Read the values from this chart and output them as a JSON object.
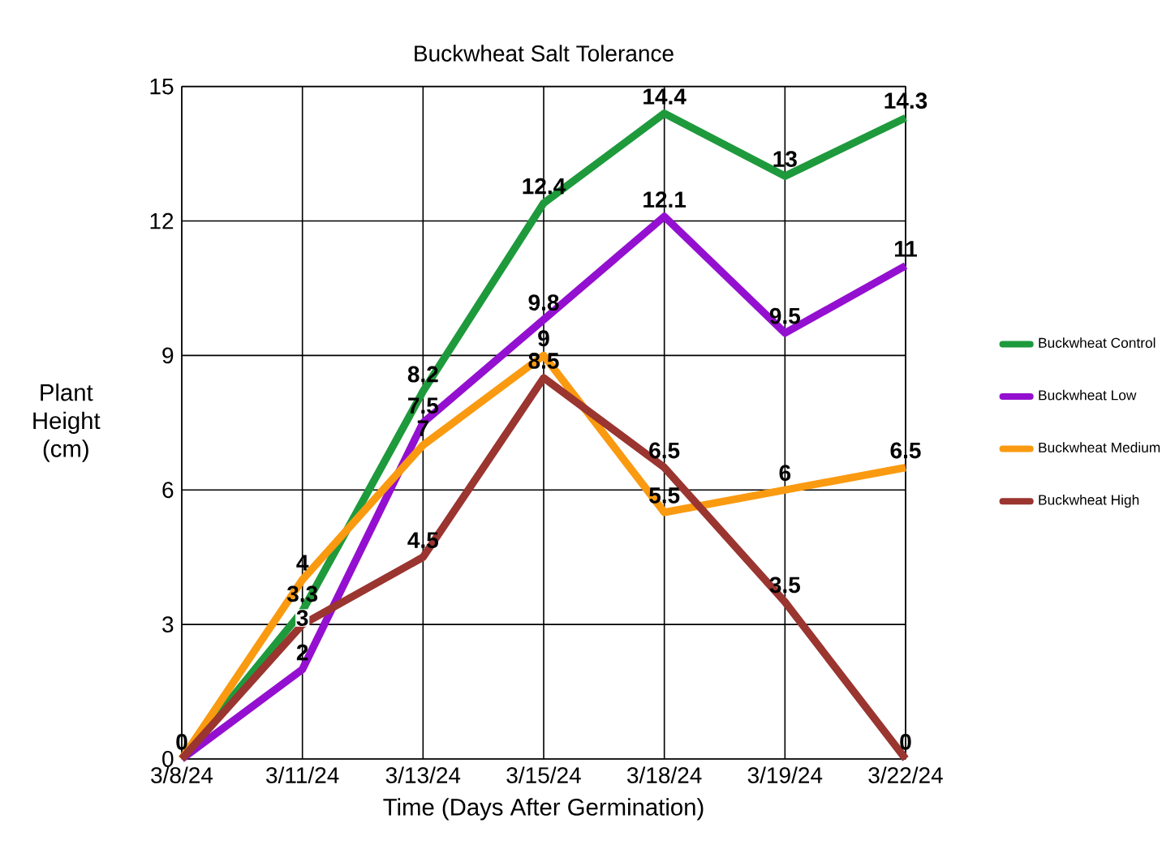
{
  "chart_data": {
    "type": "line",
    "title": "Buckwheat Salt Tolerance",
    "xlabel": "Time (Days After Germination)",
    "ylabel": "Plant Height (cm)",
    "categories": [
      "3/8/24",
      "3/11/24",
      "3/13/24",
      "3/15/24",
      "3/18/24",
      "3/19/24",
      "3/22/24"
    ],
    "series": [
      {
        "name": "Buckwheat Control",
        "color": "#1e9a3c",
        "values": [
          0,
          3.3,
          8.2,
          12.4,
          14.4,
          13,
          14.3
        ],
        "value_labels": [
          "0",
          "3.3",
          "8.2",
          "12.4",
          "14.4",
          "13",
          "14.3"
        ]
      },
      {
        "name": "Buckwheat Low",
        "color": "#9410d0",
        "values": [
          0,
          2,
          7.5,
          9.8,
          12.1,
          9.5,
          11
        ],
        "value_labels": [
          null,
          "2",
          "7.5",
          "9.8",
          "12.1",
          "9.5",
          "11"
        ]
      },
      {
        "name": "Buckwheat Medium",
        "color": "#fa9a10",
        "values": [
          0,
          4,
          7,
          9,
          5.5,
          6,
          6.5
        ],
        "value_labels": [
          null,
          "4",
          "7",
          "9",
          "5.5",
          "6",
          "6.5"
        ]
      },
      {
        "name": "Buckwheat High",
        "color": "#9a3530",
        "values": [
          0,
          3,
          4.5,
          8.5,
          6.5,
          3.5,
          0
        ],
        "value_labels": [
          null,
          "3",
          "4.5",
          "8.5",
          "6.5",
          "3.5",
          "0"
        ]
      }
    ],
    "ylim": [
      0,
      15
    ],
    "yticks": [
      0,
      3,
      6,
      9,
      12,
      15
    ],
    "grid": true,
    "legend": "right",
    "marker": "none",
    "line_style": "solid"
  }
}
